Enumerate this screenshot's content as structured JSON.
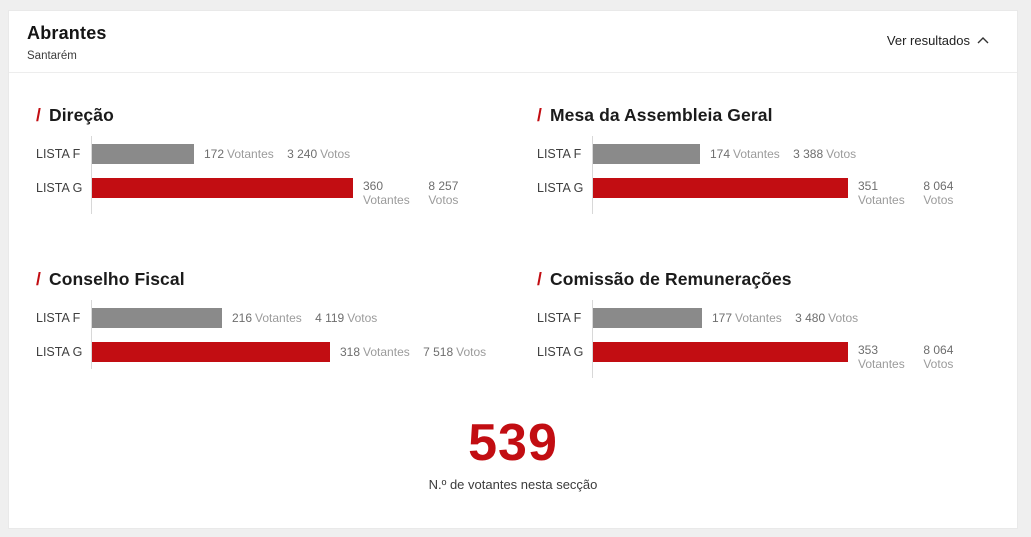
{
  "header": {
    "title": "Abrantes",
    "subtitle": "Santarém",
    "toggle_label": "Ver resultados",
    "toggle_icon": "chevron-up"
  },
  "units": {
    "votantes": "Votantes",
    "votos": "Votos"
  },
  "colors": {
    "accent_red": "#c20d12",
    "bar_gray": "#8a8a8a",
    "number_text": "#6e6e6e",
    "unit_text": "#9b9b9b"
  },
  "chart_data": [
    {
      "type": "bar",
      "title": "Direção",
      "slash_prefix": "/",
      "categories": [
        "LISTA F",
        "LISTA G"
      ],
      "rows": [
        {
          "list": "LISTA F",
          "votantes": 172,
          "votantes_label": "172",
          "votos": 3240,
          "votos_label": "3 240",
          "color": "gray"
        },
        {
          "list": "LISTA G",
          "votantes": 360,
          "votantes_label": "360",
          "votos": 8257,
          "votos_label": "8 257",
          "color": "red"
        }
      ]
    },
    {
      "type": "bar",
      "title": "Mesa da Assembleia Geral",
      "slash_prefix": "/",
      "categories": [
        "LISTA F",
        "LISTA G"
      ],
      "rows": [
        {
          "list": "LISTA F",
          "votantes": 174,
          "votantes_label": "174",
          "votos": 3388,
          "votos_label": "3 388",
          "color": "gray"
        },
        {
          "list": "LISTA G",
          "votantes": 351,
          "votantes_label": "351",
          "votos": 8064,
          "votos_label": "8 064",
          "color": "red"
        }
      ]
    },
    {
      "type": "bar",
      "title": "Conselho Fiscal",
      "slash_prefix": "/",
      "categories": [
        "LISTA F",
        "LISTA G"
      ],
      "rows": [
        {
          "list": "LISTA F",
          "votantes": 216,
          "votantes_label": "216",
          "votos": 4119,
          "votos_label": "4 119",
          "color": "gray"
        },
        {
          "list": "LISTA G",
          "votantes": 318,
          "votantes_label": "318",
          "votos": 7518,
          "votos_label": "7 518",
          "color": "red"
        }
      ]
    },
    {
      "type": "bar",
      "title": "Comissão de Remunerações",
      "slash_prefix": "/",
      "categories": [
        "LISTA F",
        "LISTA G"
      ],
      "rows": [
        {
          "list": "LISTA F",
          "votantes": 177,
          "votantes_label": "177",
          "votos": 3480,
          "votos_label": "3 480",
          "color": "gray"
        },
        {
          "list": "LISTA G",
          "votantes": 353,
          "votantes_label": "353",
          "votos": 8064,
          "votos_label": "8 064",
          "color": "red"
        }
      ]
    }
  ],
  "scale": {
    "max_votos": 8257,
    "bar_metric": "votos"
  },
  "footer": {
    "total": "539",
    "total_caption": "N.º de votantes nesta secção"
  }
}
